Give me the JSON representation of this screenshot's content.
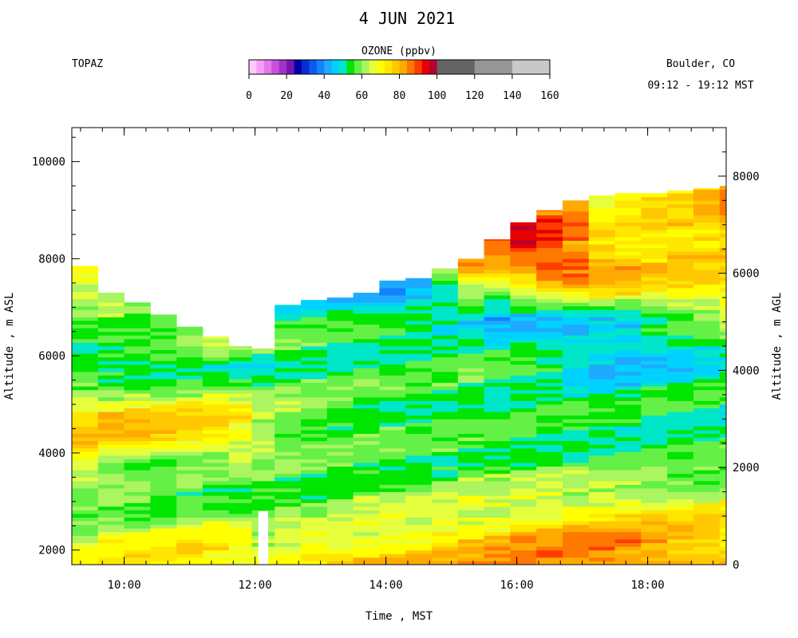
{
  "header": {
    "title": "4 JUN 2021",
    "left_label": "TOPAZ",
    "right_label_1": "Boulder, CO",
    "right_label_2": "09:12 - 19:12 MST"
  },
  "colorbar": {
    "title": "OZONE (ppbv)",
    "tick_labels": [
      "0",
      "20",
      "40",
      "60",
      "80",
      "100",
      "120",
      "140",
      "160"
    ],
    "tick_values": [
      0,
      20,
      40,
      60,
      80,
      100,
      120,
      140,
      160
    ],
    "range": [
      0,
      160
    ],
    "bins": [
      {
        "from": 0,
        "to": 4,
        "color": "#ffc8ff"
      },
      {
        "from": 4,
        "to": 8,
        "color": "#f5a0f5"
      },
      {
        "from": 8,
        "to": 12,
        "color": "#e27ae8"
      },
      {
        "from": 12,
        "to": 16,
        "color": "#c850dc"
      },
      {
        "from": 16,
        "to": 20,
        "color": "#a032c8"
      },
      {
        "from": 20,
        "to": 24,
        "color": "#7814b4"
      },
      {
        "from": 24,
        "to": 28,
        "color": "#0000aa"
      },
      {
        "from": 28,
        "to": 32,
        "color": "#0a2dd2"
      },
      {
        "from": 32,
        "to": 36,
        "color": "#0a5af0"
      },
      {
        "from": 36,
        "to": 40,
        "color": "#1482ff"
      },
      {
        "from": 40,
        "to": 44,
        "color": "#1eaaff"
      },
      {
        "from": 44,
        "to": 48,
        "color": "#00d2ff"
      },
      {
        "from": 48,
        "to": 52,
        "color": "#00e6c8"
      },
      {
        "from": 52,
        "to": 56,
        "color": "#00e600"
      },
      {
        "from": 56,
        "to": 60,
        "color": "#64f046"
      },
      {
        "from": 60,
        "to": 64,
        "color": "#aaf560"
      },
      {
        "from": 64,
        "to": 68,
        "color": "#e6ff3c"
      },
      {
        "from": 68,
        "to": 72,
        "color": "#ffff00"
      },
      {
        "from": 72,
        "to": 76,
        "color": "#ffe600"
      },
      {
        "from": 76,
        "to": 80,
        "color": "#ffc800"
      },
      {
        "from": 80,
        "to": 84,
        "color": "#ffaa00"
      },
      {
        "from": 84,
        "to": 88,
        "color": "#ff7800"
      },
      {
        "from": 88,
        "to": 92,
        "color": "#ff3c00"
      },
      {
        "from": 92,
        "to": 96,
        "color": "#e60000"
      },
      {
        "from": 96,
        "to": 100,
        "color": "#b40032"
      },
      {
        "from": 100,
        "to": 120,
        "color": "#646464"
      },
      {
        "from": 120,
        "to": 140,
        "color": "#969696"
      },
      {
        "from": 140,
        "to": 160,
        "color": "#c8c8c8"
      }
    ]
  },
  "chart_data": {
    "type": "heatmap",
    "title": "4 JUN 2021",
    "variable": "OZONE (ppbv)",
    "xlabel": "Time , MST",
    "ylabel": "Altitude , m ASL",
    "y2label": "Altitude , m AGL",
    "x_tick_labels": [
      "10:00",
      "12:00",
      "14:00",
      "16:00",
      "18:00"
    ],
    "x_tick_hours": [
      10,
      12,
      14,
      16,
      18
    ],
    "x_range_hours": [
      9.2,
      19.2
    ],
    "y_tick_labels": [
      "2000",
      "4000",
      "6000",
      "8000",
      "10000"
    ],
    "y_tick_values": [
      2000,
      4000,
      6000,
      8000,
      10000
    ],
    "ylim": [
      1700,
      10700
    ],
    "y2_tick_labels": [
      "0",
      "2000",
      "4000",
      "6000",
      "8000"
    ],
    "y2_tick_values": [
      0,
      2000,
      4000,
      6000,
      8000
    ],
    "y2_offset_m": 1700,
    "gap_hours": [
      12.05,
      12.2
    ],
    "gap_top_m": 2800,
    "time_hours": [
      9.2,
      9.6,
      10.0,
      10.4,
      10.8,
      11.2,
      11.6,
      11.95,
      12.3,
      12.7,
      13.1,
      13.5,
      13.9,
      14.3,
      14.7,
      15.1,
      15.5,
      15.9,
      16.3,
      16.7,
      17.1,
      17.5,
      17.9,
      18.3,
      18.7,
      19.1
    ],
    "top_altitude_m": [
      7850,
      7300,
      7100,
      6850,
      6600,
      6400,
      6200,
      6150,
      7050,
      7150,
      7200,
      7300,
      7550,
      7600,
      7800,
      8000,
      8400,
      8750,
      9000,
      9200,
      9300,
      9350,
      9350,
      9400,
      9450,
      9500
    ],
    "profile_altitudes_m": [
      1800,
      2300,
      2800,
      3300,
      3800,
      4300,
      4800,
      5300,
      5800,
      6300,
      6800,
      7300,
      7800,
      8300,
      8800,
      9300
    ],
    "ozone_profiles_ppbv": [
      [
        68,
        63,
        59,
        57,
        70,
        78,
        74,
        60,
        49,
        57,
        57,
        63,
        73
      ],
      [
        70,
        66,
        58,
        58,
        60,
        78,
        75,
        60,
        48,
        59
      ],
      [
        72,
        66,
        58,
        57,
        60,
        80,
        75,
        62,
        48,
        58
      ],
      [
        72,
        68,
        58,
        56,
        58,
        78,
        74,
        62,
        48,
        60
      ],
      [
        74,
        70,
        60,
        56,
        58,
        76,
        74,
        62,
        50,
        60
      ],
      [
        74,
        68,
        60,
        55,
        58,
        74,
        72,
        62,
        50,
        62
      ],
      [
        72,
        66,
        58,
        55,
        58,
        72,
        70,
        60,
        50,
        64
      ],
      [
        72,
        58,
        56,
        57,
        58,
        66,
        64,
        58,
        52,
        64
      ],
      [
        74,
        64,
        58,
        58,
        57,
        60,
        62,
        58,
        54,
        56,
        52,
        50
      ],
      [
        76,
        66,
        58,
        56,
        57,
        58,
        60,
        56,
        54,
        56,
        52,
        48
      ],
      [
        76,
        66,
        60,
        58,
        56,
        57,
        58,
        56,
        54,
        54,
        50,
        46
      ],
      [
        78,
        68,
        62,
        58,
        56,
        56,
        56,
        55,
        54,
        54,
        52,
        44
      ],
      [
        78,
        70,
        62,
        58,
        56,
        55,
        56,
        55,
        54,
        54,
        50,
        42
      ],
      [
        78,
        72,
        64,
        58,
        56,
        54,
        55,
        55,
        54,
        54,
        50,
        46
      ],
      [
        78,
        74,
        64,
        58,
        56,
        54,
        55,
        55,
        54,
        54,
        48,
        50,
        62
      ],
      [
        80,
        74,
        66,
        60,
        56,
        55,
        55,
        55,
        54,
        54,
        44,
        58,
        86
      ],
      [
        82,
        76,
        66,
        60,
        56,
        54,
        54,
        55,
        54,
        52,
        42,
        56,
        84
      ],
      [
        84,
        80,
        68,
        62,
        56,
        54,
        54,
        56,
        54,
        50,
        46,
        60,
        88,
        92
      ],
      [
        86,
        80,
        70,
        62,
        56,
        54,
        54,
        54,
        52,
        48,
        48,
        66,
        94,
        88
      ],
      [
        86,
        82,
        70,
        62,
        56,
        54,
        54,
        52,
        48,
        46,
        48,
        70,
        92,
        84
      ],
      [
        86,
        82,
        72,
        62,
        56,
        54,
        52,
        50,
        46,
        44,
        50,
        72,
        82,
        78,
        70
      ],
      [
        84,
        82,
        72,
        62,
        56,
        54,
        52,
        50,
        46,
        44,
        52,
        72,
        80,
        76,
        70
      ],
      [
        84,
        80,
        72,
        62,
        56,
        54,
        52,
        52,
        46,
        48,
        56,
        72,
        78,
        76,
        72
      ],
      [
        82,
        80,
        70,
        62,
        56,
        54,
        54,
        52,
        48,
        50,
        58,
        72,
        76,
        78,
        74
      ],
      [
        80,
        78,
        70,
        62,
        56,
        54,
        54,
        52,
        50,
        52,
        60,
        72,
        74,
        76,
        78
      ],
      [
        80,
        76,
        70,
        62,
        56,
        54,
        52,
        52,
        52,
        54,
        62,
        74,
        74,
        76,
        82
      ]
    ]
  }
}
